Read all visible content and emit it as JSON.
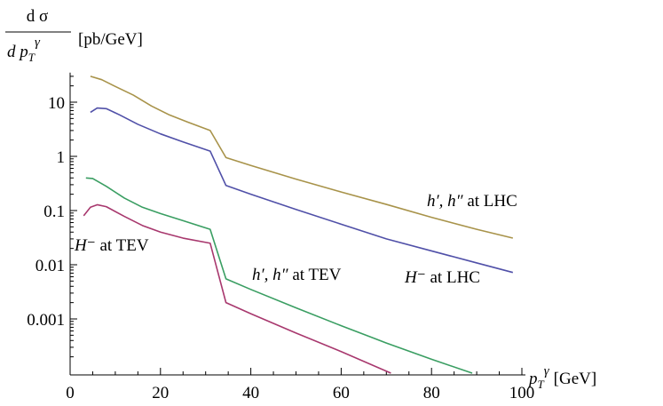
{
  "chart_data": {
    "type": "line",
    "title": "",
    "ylabel_numerator": "d σ",
    "ylabel_denominator_base": "d p",
    "ylabel_denominator_sub": "T",
    "ylabel_denominator_sup": "γ",
    "ylabel_unit": "[pb/GeV]",
    "xlabel_base": "p",
    "xlabel_sub": "T",
    "xlabel_sup": "γ",
    "xlabel_unit": "[GeV]",
    "xlim": [
      0,
      100
    ],
    "ylim": [
      0.0001,
      35
    ],
    "yscale": "log",
    "x_ticks": [
      0,
      20,
      40,
      60,
      80,
      100
    ],
    "y_ticks": [
      {
        "value": 10,
        "label": "10"
      },
      {
        "value": 1,
        "label": "1"
      },
      {
        "value": 0.1,
        "label": "0.1"
      },
      {
        "value": 0.01,
        "label": "0.01"
      },
      {
        "value": 0.001,
        "label": "0.001"
      }
    ],
    "series": [
      {
        "name": "h', h'' at LHC",
        "color": "#a8934a",
        "points": [
          [
            4.5,
            30
          ],
          [
            7,
            26
          ],
          [
            10,
            19.5
          ],
          [
            14,
            13.5
          ],
          [
            18,
            8.5
          ],
          [
            22,
            5.8
          ],
          [
            26,
            4.3
          ],
          [
            31,
            3.0
          ],
          [
            34.5,
            0.95
          ],
          [
            40,
            0.68
          ],
          [
            50,
            0.38
          ],
          [
            60,
            0.22
          ],
          [
            70,
            0.13
          ],
          [
            80,
            0.075
          ],
          [
            90,
            0.045
          ],
          [
            98,
            0.031
          ]
        ]
      },
      {
        "name": "H⁻ at LHC",
        "color": "#5050a8",
        "points": [
          [
            4.5,
            6.5
          ],
          [
            6,
            7.8
          ],
          [
            8,
            7.6
          ],
          [
            11,
            5.8
          ],
          [
            15,
            3.9
          ],
          [
            20,
            2.6
          ],
          [
            25,
            1.85
          ],
          [
            31,
            1.25
          ],
          [
            34.5,
            0.29
          ],
          [
            40,
            0.2
          ],
          [
            50,
            0.105
          ],
          [
            60,
            0.056
          ],
          [
            70,
            0.03
          ],
          [
            80,
            0.018
          ],
          [
            90,
            0.0108
          ],
          [
            98,
            0.0072
          ]
        ]
      },
      {
        "name": "h', h'' at TEV",
        "color": "#3a9e62",
        "points": [
          [
            3.5,
            0.4
          ],
          [
            5,
            0.39
          ],
          [
            8,
            0.28
          ],
          [
            12,
            0.17
          ],
          [
            16,
            0.115
          ],
          [
            20,
            0.088
          ],
          [
            25,
            0.065
          ],
          [
            31,
            0.045
          ],
          [
            34.5,
            0.0055
          ],
          [
            40,
            0.0035
          ],
          [
            50,
            0.0016
          ],
          [
            60,
            0.00075
          ],
          [
            70,
            0.00036
          ],
          [
            80,
            0.00018
          ],
          [
            89,
            0.0001
          ]
        ]
      },
      {
        "name": "H⁻ at TEV",
        "color": "#a8386e",
        "points": [
          [
            3,
            0.08
          ],
          [
            4.5,
            0.115
          ],
          [
            6,
            0.128
          ],
          [
            8,
            0.118
          ],
          [
            12,
            0.078
          ],
          [
            16,
            0.053
          ],
          [
            20,
            0.04
          ],
          [
            25,
            0.031
          ],
          [
            31,
            0.025
          ],
          [
            34.5,
            0.002
          ],
          [
            40,
            0.00125
          ],
          [
            50,
            0.00055
          ],
          [
            60,
            0.00025
          ],
          [
            71,
            0.0001
          ]
        ]
      }
    ],
    "annotations": [
      {
        "name": "h-lhc",
        "base": "h′, h″",
        "rest": " at LHC"
      },
      {
        "name": "hminus-lhc",
        "base": "H⁻",
        "rest": " at LHC"
      },
      {
        "name": "h-tev",
        "base": "h′, h″",
        "rest": " at TEV"
      },
      {
        "name": "hminus-tev",
        "base": "H⁻",
        "rest": " at TEV"
      }
    ]
  }
}
